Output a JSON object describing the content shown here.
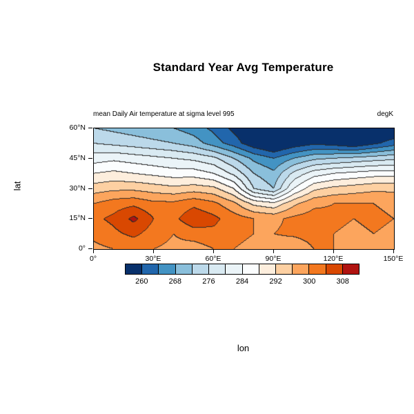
{
  "title": "Standard Year Avg Temperature",
  "subtitle_left": "mean Daily Air temperature at sigma level 995",
  "subtitle_right": "degK",
  "xlabel": "lon",
  "ylabel": "lat",
  "axes": {
    "x_range": [
      0,
      150
    ],
    "y_range": [
      0,
      60
    ],
    "x_ticks": [
      {
        "value": 0,
        "label": "0°"
      },
      {
        "value": 30,
        "label": "30°E"
      },
      {
        "value": 60,
        "label": "60°E"
      },
      {
        "value": 90,
        "label": "90°E"
      },
      {
        "value": 120,
        "label": "120°E"
      },
      {
        "value": 150,
        "label": "150°E"
      }
    ],
    "y_ticks": [
      {
        "value": 0,
        "label": "0°"
      },
      {
        "value": 15,
        "label": "15°N"
      },
      {
        "value": 30,
        "label": "30°N"
      },
      {
        "value": 45,
        "label": "45°N"
      },
      {
        "value": 60,
        "label": "60°N"
      }
    ]
  },
  "colorbar": {
    "levels": [
      256,
      260,
      264,
      268,
      272,
      276,
      280,
      284,
      288,
      292,
      296,
      300,
      304,
      308,
      312
    ],
    "tick_labels": [
      "260",
      "268",
      "276",
      "284",
      "292",
      "300",
      "308"
    ],
    "colors": [
      "#08306b",
      "#2166ac",
      "#4393c3",
      "#8abfdb",
      "#bcd9ea",
      "#d9eaf2",
      "#ebf4f8",
      "#fbfdfe",
      "#fdeedd",
      "#fdd0a2",
      "#fca55d",
      "#f3781f",
      "#d94801",
      "#b01310"
    ],
    "contour_line_color": "#2a2a2a"
  },
  "chart_data": {
    "type": "heatmap",
    "title": "Standard Year Avg Temperature",
    "subtitle": "mean Daily Air temperature at sigma level 995",
    "units": "degK",
    "xlabel": "lon",
    "ylabel": "lat",
    "contour_interval": 4,
    "contour_range": [
      256,
      312
    ],
    "lon": [
      0,
      10,
      20,
      30,
      40,
      50,
      60,
      70,
      80,
      90,
      100,
      110,
      120,
      130,
      140,
      150
    ],
    "lat": [
      60,
      52.5,
      45,
      37.5,
      30,
      22.5,
      15,
      7.5,
      0
    ],
    "values": [
      [
        272,
        271,
        270,
        269,
        268,
        266,
        263,
        259,
        256,
        253,
        252,
        252,
        253,
        253,
        254,
        255
      ],
      [
        276,
        275,
        274,
        273,
        272,
        270,
        266,
        262,
        257,
        254,
        257,
        259,
        258,
        256,
        259,
        262
      ],
      [
        282,
        283,
        282,
        281,
        280,
        279,
        277,
        272,
        267,
        264,
        268,
        271,
        272,
        273,
        274,
        275
      ],
      [
        288,
        289,
        288,
        287,
        286,
        286,
        284,
        279,
        272,
        269,
        277,
        282,
        284,
        285,
        286,
        286
      ],
      [
        294,
        295,
        295,
        294,
        293,
        294,
        293,
        288,
        276,
        272,
        284,
        291,
        293,
        294,
        295,
        295
      ],
      [
        300,
        302,
        303,
        301,
        301,
        303,
        301,
        297,
        291,
        289,
        295,
        299,
        300,
        300,
        300,
        299
      ],
      [
        303,
        305,
        309,
        304,
        303,
        307,
        305,
        302,
        300,
        299,
        301,
        302,
        301,
        300,
        301,
        300
      ],
      [
        301,
        303,
        305,
        302,
        300,
        302,
        303,
        301,
        300,
        300,
        301,
        302,
        300,
        299,
        300,
        299
      ],
      [
        299,
        300,
        301,
        300,
        299,
        298,
        300,
        300,
        299,
        297,
        296,
        300,
        300,
        299,
        300,
        299
      ]
    ]
  }
}
